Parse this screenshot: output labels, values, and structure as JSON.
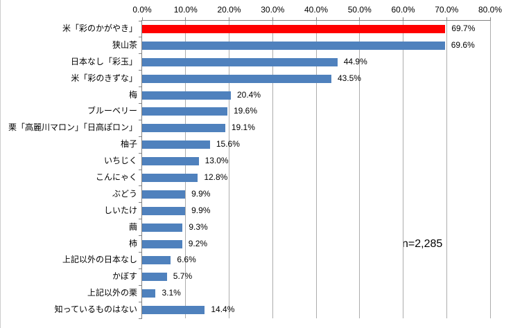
{
  "chart_data": {
    "type": "bar",
    "orientation": "horizontal",
    "title": "",
    "xlabel": "",
    "ylabel": "",
    "xlim": [
      0,
      80
    ],
    "x_ticks": [
      0,
      10,
      20,
      30,
      40,
      50,
      60,
      70,
      80
    ],
    "x_tick_labels": [
      "0.0%",
      "10.0%",
      "20.0%",
      "30.0%",
      "40.0%",
      "50.0%",
      "60.0%",
      "70.0%",
      "80.0%"
    ],
    "axis_position": "top",
    "grid": true,
    "legend": false,
    "categories": [
      "米「彩のかがやき」",
      "狭山茶",
      "日本なし「彩玉」",
      "米「彩のきずな」",
      "梅",
      "ブルーベリー",
      "栗「高麗川マロン」「日高ぽロン」",
      "柚子",
      "いちじく",
      "こんにゃく",
      "ぶどう",
      "しいたけ",
      "繭",
      "柿",
      "上記以外の日本なし",
      "かぼす",
      "上記以外の栗",
      "知っているものはない"
    ],
    "values": [
      69.7,
      69.6,
      44.9,
      43.5,
      20.4,
      19.6,
      19.1,
      15.6,
      13.0,
      12.8,
      9.9,
      9.9,
      9.3,
      9.2,
      6.6,
      5.7,
      3.1,
      14.4
    ],
    "value_labels": [
      "69.7%",
      "69.6%",
      "44.9%",
      "43.5%",
      "20.4%",
      "19.6%",
      "19.1%",
      "15.6%",
      "13.0%",
      "12.8%",
      "9.9%",
      "9.9%",
      "9.3%",
      "9.2%",
      "6.6%",
      "5.7%",
      "3.1%",
      "14.4%"
    ],
    "highlight_index": 0,
    "colors": {
      "bar_default": "#4F81BD",
      "bar_highlight": "#FF0000",
      "gridline": "#ACACAC",
      "axis": "#808080"
    },
    "annotation": "n=2,285"
  }
}
